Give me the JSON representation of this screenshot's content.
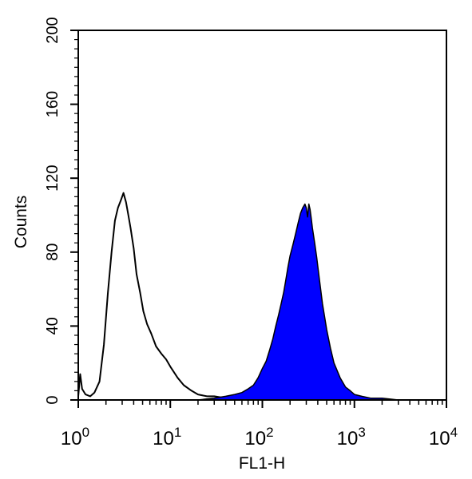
{
  "chart_data": {
    "type": "area",
    "xlabel": "FL1-H",
    "ylabel": "Counts",
    "x_scale": "log",
    "xlim": [
      1,
      10000
    ],
    "ylim": [
      0,
      200
    ],
    "x_ticks": [
      {
        "value": 1,
        "base": "10",
        "exp": "0"
      },
      {
        "value": 10,
        "base": "10",
        "exp": "1"
      },
      {
        "value": 100,
        "base": "10",
        "exp": "2"
      },
      {
        "value": 1000,
        "base": "10",
        "exp": "3"
      },
      {
        "value": 10000,
        "base": "10",
        "exp": "4"
      }
    ],
    "y_ticks": [
      "0",
      "40",
      "80",
      "120",
      "160",
      "200"
    ],
    "grid": false,
    "colors": {
      "filled": "#0000ff",
      "outline": "#000000"
    },
    "series": [
      {
        "style": "outline",
        "x": [
          1.0,
          1.05,
          1.1,
          1.2,
          1.35,
          1.5,
          1.7,
          1.9,
          2.1,
          2.3,
          2.5,
          2.7,
          2.9,
          3.1,
          3.3,
          3.5,
          3.7,
          4.0,
          4.3,
          4.7,
          5.1,
          5.6,
          6.2,
          7.0,
          8.0,
          9.0,
          10.0,
          12.0,
          14.0,
          17.0,
          20.0,
          25.0,
          30.0,
          40.0,
          50.0
        ],
        "y": [
          2,
          14,
          6,
          3,
          2,
          4,
          10,
          30,
          58,
          80,
          97,
          104,
          108,
          112,
          107,
          100,
          93,
          82,
          68,
          58,
          48,
          41,
          36,
          29,
          25,
          22,
          18,
          12,
          8,
          5,
          3,
          2,
          2,
          1,
          0
        ]
      },
      {
        "style": "filled",
        "x": [
          20,
          30,
          40,
          50,
          60,
          70,
          80,
          90,
          100,
          110,
          120,
          130,
          140,
          150,
          160,
          170,
          180,
          190,
          200,
          215,
          230,
          245,
          260,
          275,
          290,
          300,
          310,
          320,
          330,
          340,
          350,
          370,
          390,
          420,
          450,
          500,
          550,
          600,
          700,
          800,
          900,
          1000,
          1200,
          1500,
          2000,
          3000,
          5000,
          10000
        ],
        "y": [
          0,
          1,
          2,
          3,
          4,
          6,
          8,
          12,
          17,
          21,
          27,
          33,
          40,
          46,
          52,
          58,
          65,
          72,
          78,
          84,
          90,
          96,
          101,
          104,
          106,
          104,
          99,
          106,
          103,
          98,
          93,
          85,
          77,
          64,
          52,
          38,
          28,
          20,
          12,
          7,
          5,
          3,
          2,
          1,
          1,
          0,
          0,
          0
        ]
      }
    ]
  }
}
